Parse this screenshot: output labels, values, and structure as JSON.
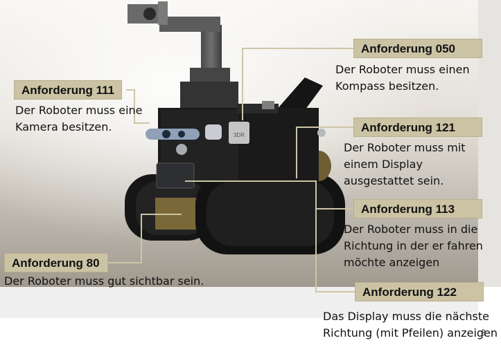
{
  "requirements": [
    {
      "id": "Anforderung 111",
      "text": [
        "Der Roboter muss eine",
        "Kamera besitzen."
      ]
    },
    {
      "id": "Anforderung 050",
      "text": [
        "Der Roboter muss einen",
        "Kompass besitzen."
      ]
    },
    {
      "id": "Anforderung 121",
      "text": [
        "Der Roboter muss mit",
        "einem Display",
        "ausgestattet sein."
      ]
    },
    {
      "id": "Anforderung 113",
      "text": [
        "Der Roboter muss in die",
        "Richtung in der er fahren",
        "möchte anzeigen"
      ]
    },
    {
      "id": "Anforderung 80",
      "text": [
        "Der Roboter muss gut sichtbar sein."
      ]
    },
    {
      "id": "Anforderung 122",
      "text": [
        "Das Display muss die nächste",
        "Richtung (mit Pfeilen) anzeigen"
      ]
    }
  ],
  "module_label": "3DR",
  "page_number": "2",
  "colors": {
    "label_fill": "#cbc3a4",
    "leader_line": "#cdc6a6",
    "robot_body": "#1a1a1a",
    "floor": "#a09a8f"
  }
}
